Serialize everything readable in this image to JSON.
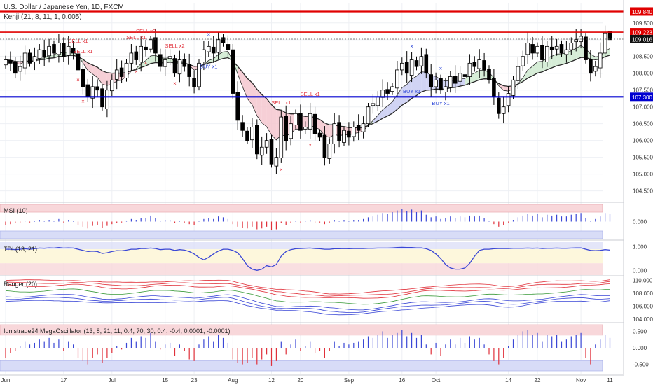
{
  "header": {
    "symbol_title": "U.S. Dollar / Japanese Yen, 1D, FXCM",
    "indicator_title": "Kenji (21, 8, 11, 1, 0.005)"
  },
  "colors": {
    "candle_up": "#ffffff",
    "candle_down": "#000000",
    "resistance_line": "#e00000",
    "support_line": "#0000d0",
    "kenji_fast": "#2a2a2a",
    "kenji_slow": "#2a2a2a",
    "cloud_bear": "#f4c7cf",
    "cloud_bull": "#cfead0",
    "cloud_blue": "#c9cdf2",
    "sell_color": "#e0303a",
    "buy_color": "#2c47d8",
    "panel_red_band": "#f8d7da",
    "panel_blue_band": "#d8dcf7",
    "panel_yellow_band": "#fdf7dc"
  },
  "chart_data": [
    {
      "type": "candlestick",
      "title": "U.S. Dollar / Japanese Yen, 1D, FXCM",
      "subtitle": "Kenji (21, 8, 11, 1, 0.005)",
      "x_ticks": [
        "Jun",
        "17",
        "Jul",
        "15",
        "23",
        "Aug",
        "12",
        "20",
        "Sep",
        "16",
        "Oct",
        "14",
        "22",
        "Nov",
        "11"
      ],
      "x_tick_bar_index": [
        0,
        12,
        22,
        33,
        39,
        47,
        55,
        61,
        71,
        82,
        89,
        104,
        110,
        119,
        125
      ],
      "y_ticks": [
        104.5,
        105.0,
        105.5,
        106.0,
        106.5,
        107.0,
        107.5,
        108.0,
        108.5,
        109.0,
        109.5
      ],
      "ylim": [
        104.2,
        110.1
      ],
      "price_labels": {
        "resistance": "109.840",
        "current_high": "109.223",
        "last": "109.016",
        "support": "107.300"
      },
      "horizontal_lines": [
        {
          "name": "resistance",
          "value": 109.84
        },
        {
          "name": "level",
          "value": 109.223
        },
        {
          "name": "support",
          "value": 107.3
        }
      ],
      "closes": [
        108.4,
        108.3,
        108.0,
        108.2,
        108.6,
        108.3,
        108.5,
        108.7,
        108.5,
        108.8,
        108.6,
        108.9,
        108.5,
        108.8,
        108.6,
        108.1,
        107.6,
        107.3,
        107.6,
        107.5,
        107.0,
        107.5,
        107.8,
        108.1,
        107.9,
        108.3,
        108.6,
        108.4,
        108.8,
        108.7,
        109.0,
        108.6,
        108.2,
        108.4,
        108.5,
        108.0,
        108.4,
        108.2,
        107.9,
        107.6,
        108.3,
        108.7,
        108.8,
        108.6,
        109.0,
        108.9,
        108.7,
        107.4,
        106.6,
        106.3,
        106.0,
        106.4,
        105.6,
        105.8,
        106.0,
        105.3,
        105.5,
        106.7,
        106.0,
        106.5,
        106.8,
        106.3,
        106.4,
        106.8,
        106.2,
        106.1,
        105.5,
        105.9,
        106.5,
        106.0,
        106.3,
        106.1,
        106.4,
        106.3,
        106.5,
        107.0,
        107.1,
        107.3,
        107.5,
        107.4,
        107.6,
        108.1,
        108.3,
        108.0,
        108.4,
        108.2,
        108.5,
        108.0,
        107.6,
        107.8,
        107.5,
        107.6,
        107.9,
        107.7,
        108.0,
        107.9,
        108.3,
        108.2,
        108.4,
        108.1,
        107.8,
        107.3,
        106.8,
        107.0,
        107.4,
        107.8,
        108.2,
        108.5,
        108.9,
        108.6,
        108.8,
        108.4,
        108.8,
        108.7,
        108.8,
        108.6,
        108.7,
        108.9,
        109.0,
        109.1,
        108.4,
        108.0,
        108.2,
        108.6,
        109.2,
        109.0
      ],
      "sell_signals": [
        {
          "bar": 15,
          "label": "SELL x1"
        },
        {
          "bar": 16,
          "label": "SELL x1"
        },
        {
          "bar": 27,
          "label": "SELL x1"
        },
        {
          "bar": 29,
          "label": "SELL x2"
        },
        {
          "bar": 35,
          "label": "SELL x2"
        },
        {
          "bar": 57,
          "label": "SELL x1"
        },
        {
          "bar": 63,
          "label": "SELL x1"
        }
      ],
      "buy_signals": [
        {
          "bar": 42,
          "label": "BUY x1"
        },
        {
          "bar": 84,
          "label": "BUY x1"
        },
        {
          "bar": 90,
          "label": "BUY x1"
        }
      ]
    },
    {
      "type": "bar",
      "title": "MSI (10)",
      "y_ticks": [
        "0.000"
      ],
      "ylim": [
        -1,
        1
      ],
      "values": [
        -0.2,
        -0.15,
        -0.1,
        -0.05,
        0.05,
        -0.05,
        0.05,
        0.1,
        0.05,
        0.1,
        0.05,
        0.15,
        -0.05,
        0.1,
        0.05,
        -0.2,
        -0.3,
        -0.4,
        -0.25,
        -0.2,
        -0.35,
        -0.25,
        -0.15,
        -0.1,
        -0.05,
        0.05,
        0.15,
        0.1,
        0.2,
        0.2,
        0.35,
        0.2,
        0.05,
        0.1,
        0.1,
        -0.1,
        0.05,
        -0.05,
        -0.15,
        -0.2,
        0.05,
        0.15,
        0.2,
        0.15,
        0.3,
        0.25,
        0.15,
        -0.15,
        -0.3,
        -0.35,
        -0.4,
        -0.3,
        -0.45,
        -0.4,
        -0.3,
        -0.5,
        -0.45,
        -0.1,
        -0.2,
        -0.1,
        0.05,
        -0.05,
        0.05,
        0.1,
        -0.05,
        -0.05,
        -0.15,
        -0.05,
        0.1,
        0.05,
        0.1,
        0.05,
        0.1,
        0.1,
        0.15,
        0.25,
        0.3,
        0.4,
        0.5,
        0.45,
        0.55,
        0.65,
        0.75,
        0.6,
        0.7,
        0.55,
        0.65,
        0.4,
        0.25,
        0.3,
        0.15,
        0.2,
        0.3,
        0.2,
        0.3,
        0.25,
        0.35,
        0.3,
        0.35,
        0.2,
        0.05,
        -0.15,
        -0.3,
        -0.2,
        -0.05,
        0.1,
        0.25,
        0.35,
        0.45,
        0.35,
        0.45,
        0.25,
        0.4,
        0.35,
        0.4,
        0.3,
        0.3,
        0.4,
        0.45,
        0.5,
        0.2,
        0.05,
        0.15,
        0.3,
        0.5,
        0.45
      ]
    },
    {
      "type": "line",
      "title": "TDI (13, 21)",
      "y_ticks": [
        "1.000",
        "0.000"
      ],
      "ylim": [
        -0.2,
        1.2
      ],
      "values": [
        0.9,
        0.9,
        0.88,
        0.9,
        0.92,
        0.9,
        0.92,
        0.95,
        0.94,
        0.96,
        0.95,
        0.97,
        0.95,
        0.96,
        0.95,
        0.9,
        0.85,
        0.8,
        0.82,
        0.8,
        0.72,
        0.75,
        0.8,
        0.84,
        0.83,
        0.86,
        0.9,
        0.9,
        0.93,
        0.93,
        0.95,
        0.93,
        0.88,
        0.9,
        0.9,
        0.85,
        0.88,
        0.86,
        0.8,
        0.7,
        0.55,
        0.45,
        0.55,
        0.7,
        0.82,
        0.9,
        0.9,
        0.85,
        0.75,
        0.5,
        0.2,
        0.05,
        0.0,
        0.05,
        0.2,
        0.15,
        0.25,
        0.6,
        0.8,
        0.88,
        0.92,
        0.93,
        0.94,
        0.95,
        0.93,
        0.92,
        0.9,
        0.9,
        0.92,
        0.92,
        0.93,
        0.92,
        0.93,
        0.93,
        0.93,
        0.94,
        0.94,
        0.95,
        0.95,
        0.95,
        0.96,
        0.97,
        0.98,
        0.97,
        0.97,
        0.96,
        0.96,
        0.92,
        0.85,
        0.7,
        0.5,
        0.25,
        0.1,
        0.05,
        0.05,
        0.1,
        0.3,
        0.6,
        0.85,
        0.9,
        0.9,
        0.92,
        0.93,
        0.93,
        0.93,
        0.94,
        0.94,
        0.94,
        0.95,
        0.94,
        0.95,
        0.93,
        0.94,
        0.94,
        0.95,
        0.94,
        0.94,
        0.95,
        0.96,
        0.96,
        0.9,
        0.85,
        0.84,
        0.85,
        0.88,
        0.86
      ]
    },
    {
      "type": "line",
      "title": "Ranger (20)",
      "y_ticks": [
        "110.000",
        "108.000",
        "106.000",
        "104.000"
      ],
      "ylim": [
        103.8,
        110.4
      ],
      "series": []
    },
    {
      "type": "bar",
      "title": "Idnistrade24 MegaOscillator (13, 8, 21, 11, 0.4, 70, 30, 0.4, -0.4, 0.0001, -0.0001)",
      "y_ticks": [
        "0.500",
        "0.000",
        "-0.500"
      ],
      "ylim": [
        -0.7,
        0.7
      ],
      "values": [
        -0.3,
        -0.15,
        -0.1,
        0.05,
        0.2,
        0.1,
        0.15,
        0.25,
        0.2,
        0.3,
        0.15,
        0.25,
        -0.1,
        0.2,
        0.1,
        -0.3,
        -0.4,
        -0.5,
        -0.3,
        -0.2,
        -0.45,
        -0.3,
        -0.15,
        0.05,
        -0.05,
        0.15,
        0.3,
        0.2,
        0.35,
        0.3,
        0.45,
        0.2,
        -0.05,
        0.1,
        0.15,
        -0.25,
        0.1,
        -0.1,
        -0.35,
        -0.4,
        0.1,
        0.25,
        0.35,
        0.2,
        0.4,
        0.3,
        0.15,
        -0.35,
        -0.45,
        -0.5,
        -0.45,
        -0.3,
        -0.5,
        -0.35,
        -0.2,
        -0.55,
        -0.4,
        0.2,
        -0.2,
        0.1,
        0.25,
        -0.1,
        0.05,
        0.2,
        -0.15,
        -0.1,
        -0.3,
        -0.1,
        0.2,
        0.05,
        0.15,
        0.1,
        0.15,
        0.2,
        0.25,
        0.35,
        0.3,
        0.4,
        0.5,
        0.3,
        0.4,
        0.45,
        0.55,
        0.35,
        0.45,
        0.3,
        0.4,
        0.1,
        -0.2,
        0.15,
        -0.25,
        0.1,
        0.25,
        0.1,
        0.3,
        0.15,
        0.35,
        0.25,
        0.3,
        0.1,
        -0.2,
        -0.4,
        -0.5,
        -0.3,
        0.05,
        0.25,
        0.4,
        0.5,
        0.55,
        0.4,
        0.45,
        0.2,
        0.4,
        0.35,
        0.4,
        0.2,
        0.25,
        0.35,
        0.4,
        0.45,
        -0.3,
        -0.5,
        0.1,
        0.25,
        0.4,
        0.3
      ]
    }
  ]
}
